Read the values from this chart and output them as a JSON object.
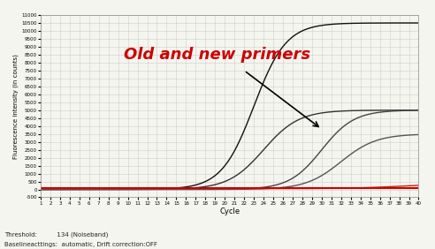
{
  "title_text": "Old and new primers",
  "title_color": "#cc0000",
  "xlabel": "Cycle",
  "ylabel": "Fluorescence intensity (in counts)",
  "xlim": [
    1,
    40
  ],
  "ylim": [
    -500,
    11000
  ],
  "yticks": [
    -500,
    0,
    500,
    1000,
    1500,
    2000,
    2500,
    3000,
    3500,
    4000,
    4500,
    5000,
    5500,
    6000,
    6500,
    7000,
    7500,
    8000,
    8500,
    9000,
    9500,
    10000,
    10500,
    11000
  ],
  "threshold": 134,
  "bg_color": "#f5f5f0",
  "grid_color": "#cccccc",
  "footer_threshold": "Threshold:          134 (Noiseband)",
  "footer_baseline": "Baselineacttings:  automatic, Drift correction:OFF"
}
